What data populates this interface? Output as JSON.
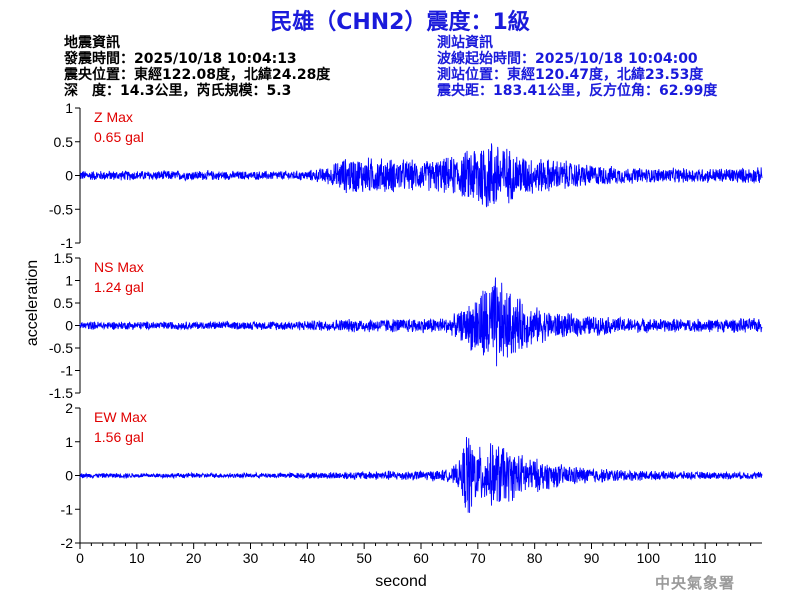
{
  "title": "民雄（CHN2）震度：1級",
  "quake_info": {
    "heading": "地震資訊",
    "time": "發震時間：2025/10/18 10:04:13",
    "epicenter": "震央位置：東經122.08度，北緯24.28度",
    "depth_mag": "深　度：14.3公里，芮氏規模：5.3"
  },
  "station_info": {
    "heading": "測站資訊",
    "wave_start": "波線起始時間：2025/10/18 10:04:00",
    "location": "測站位置：東經120.47度，北緯23.53度",
    "distance": "震央距：183.41公里，反方位角：62.99度"
  },
  "logo_text": "中央氣象署",
  "colors": {
    "trace": "#0000ff",
    "label": "#e00000",
    "title": "#1a1adb"
  },
  "chart_data": {
    "type": "line",
    "xlabel": "second",
    "ylabel": "acceleration",
    "xlim": [
      0,
      120
    ],
    "x_ticks": [
      0,
      10,
      20,
      30,
      40,
      50,
      60,
      70,
      80,
      90,
      100,
      110
    ],
    "grid": false,
    "panels": [
      {
        "name": "Z Max",
        "max_label": "0.65 gal",
        "peak": 0.65,
        "ylim": [
          -1,
          1
        ],
        "y_ticks": [
          1,
          0.5,
          0,
          -0.5,
          -1
        ],
        "envelope": {
          "x": [
            0,
            10,
            20,
            30,
            40,
            44,
            46,
            48,
            50,
            55,
            60,
            65,
            68,
            70,
            72,
            74,
            76,
            80,
            85,
            90,
            95,
            100,
            110,
            120
          ],
          "amp": [
            0.08,
            0.08,
            0.08,
            0.07,
            0.08,
            0.15,
            0.28,
            0.3,
            0.3,
            0.28,
            0.24,
            0.3,
            0.4,
            0.6,
            0.62,
            0.58,
            0.4,
            0.3,
            0.25,
            0.18,
            0.14,
            0.12,
            0.12,
            0.13
          ]
        }
      },
      {
        "name": "NS Max",
        "max_label": "1.24 gal",
        "peak": 1.24,
        "ylim": [
          -1.5,
          1.5
        ],
        "y_ticks": [
          1.5,
          1,
          0.5,
          0,
          -0.5,
          -1,
          -1.5
        ],
        "envelope": {
          "x": [
            0,
            10,
            20,
            30,
            40,
            45,
            50,
            55,
            60,
            65,
            68,
            70,
            72,
            73,
            75,
            78,
            80,
            85,
            90,
            95,
            100,
            110,
            120
          ],
          "amp": [
            0.1,
            0.1,
            0.1,
            0.1,
            0.12,
            0.15,
            0.17,
            0.17,
            0.18,
            0.2,
            0.45,
            0.85,
            1.1,
            1.24,
            0.9,
            0.6,
            0.45,
            0.3,
            0.24,
            0.2,
            0.17,
            0.16,
            0.18
          ]
        }
      },
      {
        "name": "EW Max",
        "max_label": "1.56 gal",
        "peak": 1.56,
        "ylim": [
          -2,
          2
        ],
        "y_ticks": [
          2,
          1,
          0,
          -1,
          -2
        ],
        "envelope": {
          "x": [
            0,
            10,
            20,
            30,
            40,
            45,
            50,
            55,
            60,
            65,
            67,
            68,
            70,
            72,
            74,
            76,
            80,
            85,
            90,
            95,
            100,
            110,
            120
          ],
          "amp": [
            0.08,
            0.08,
            0.08,
            0.08,
            0.1,
            0.12,
            0.14,
            0.16,
            0.16,
            0.2,
            0.5,
            1.56,
            0.9,
            1.0,
            1.1,
            0.8,
            0.55,
            0.35,
            0.25,
            0.2,
            0.15,
            0.12,
            0.12
          ]
        }
      }
    ]
  }
}
